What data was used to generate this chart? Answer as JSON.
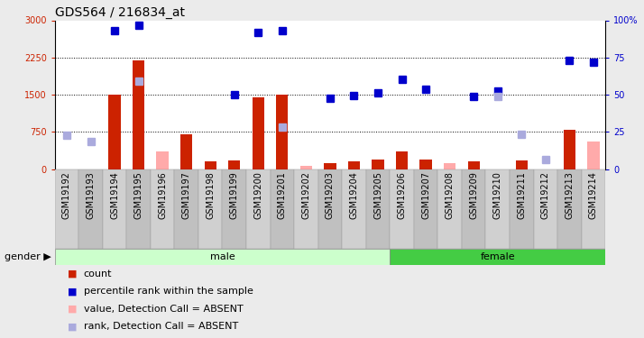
{
  "title": "GDS564 / 216834_at",
  "samples": [
    "GSM19192",
    "GSM19193",
    "GSM19194",
    "GSM19195",
    "GSM19196",
    "GSM19197",
    "GSM19198",
    "GSM19199",
    "GSM19200",
    "GSM19201",
    "GSM19202",
    "GSM19203",
    "GSM19204",
    "GSM19205",
    "GSM19206",
    "GSM19207",
    "GSM19208",
    "GSM19209",
    "GSM19210",
    "GSM19211",
    "GSM19212",
    "GSM19213",
    "GSM19214"
  ],
  "count_present": [
    0,
    0,
    1500,
    2200,
    0,
    700,
    150,
    175,
    1450,
    1500,
    0,
    125,
    150,
    200,
    350,
    200,
    0,
    150,
    0,
    175,
    0,
    800,
    0
  ],
  "count_absent": [
    0,
    0,
    0,
    0,
    350,
    0,
    0,
    0,
    0,
    0,
    60,
    0,
    0,
    0,
    0,
    0,
    120,
    0,
    0,
    0,
    0,
    0,
    550
  ],
  "rank_present": [
    null,
    null,
    2800,
    2900,
    null,
    null,
    null,
    1500,
    2750,
    2800,
    null,
    1430,
    1480,
    1530,
    1800,
    1600,
    null,
    1460,
    1580,
    null,
    null,
    2200,
    2150
  ],
  "rank_absent": [
    680,
    560,
    null,
    1780,
    null,
    null,
    null,
    null,
    null,
    850,
    null,
    null,
    null,
    null,
    null,
    null,
    null,
    null,
    1470,
    700,
    200,
    null,
    null
  ],
  "male_count": 14,
  "female_count": 9,
  "ylim_left": [
    0,
    3000
  ],
  "ylim_right": [
    0,
    100
  ],
  "yticks_left": [
    0,
    750,
    1500,
    2250,
    3000
  ],
  "yticks_right": [
    0,
    25,
    50,
    75,
    100
  ],
  "bg_color": "#ebebeb",
  "plot_bg": "#ffffff",
  "male_bg": "#ccffcc",
  "female_bg": "#44cc44",
  "bar_color_present": "#cc2200",
  "bar_color_absent": "#ffaaaa",
  "rank_color_present": "#0000cc",
  "rank_color_absent": "#aaaadd",
  "title_fontsize": 10,
  "tick_fontsize": 7,
  "label_fontsize": 8
}
